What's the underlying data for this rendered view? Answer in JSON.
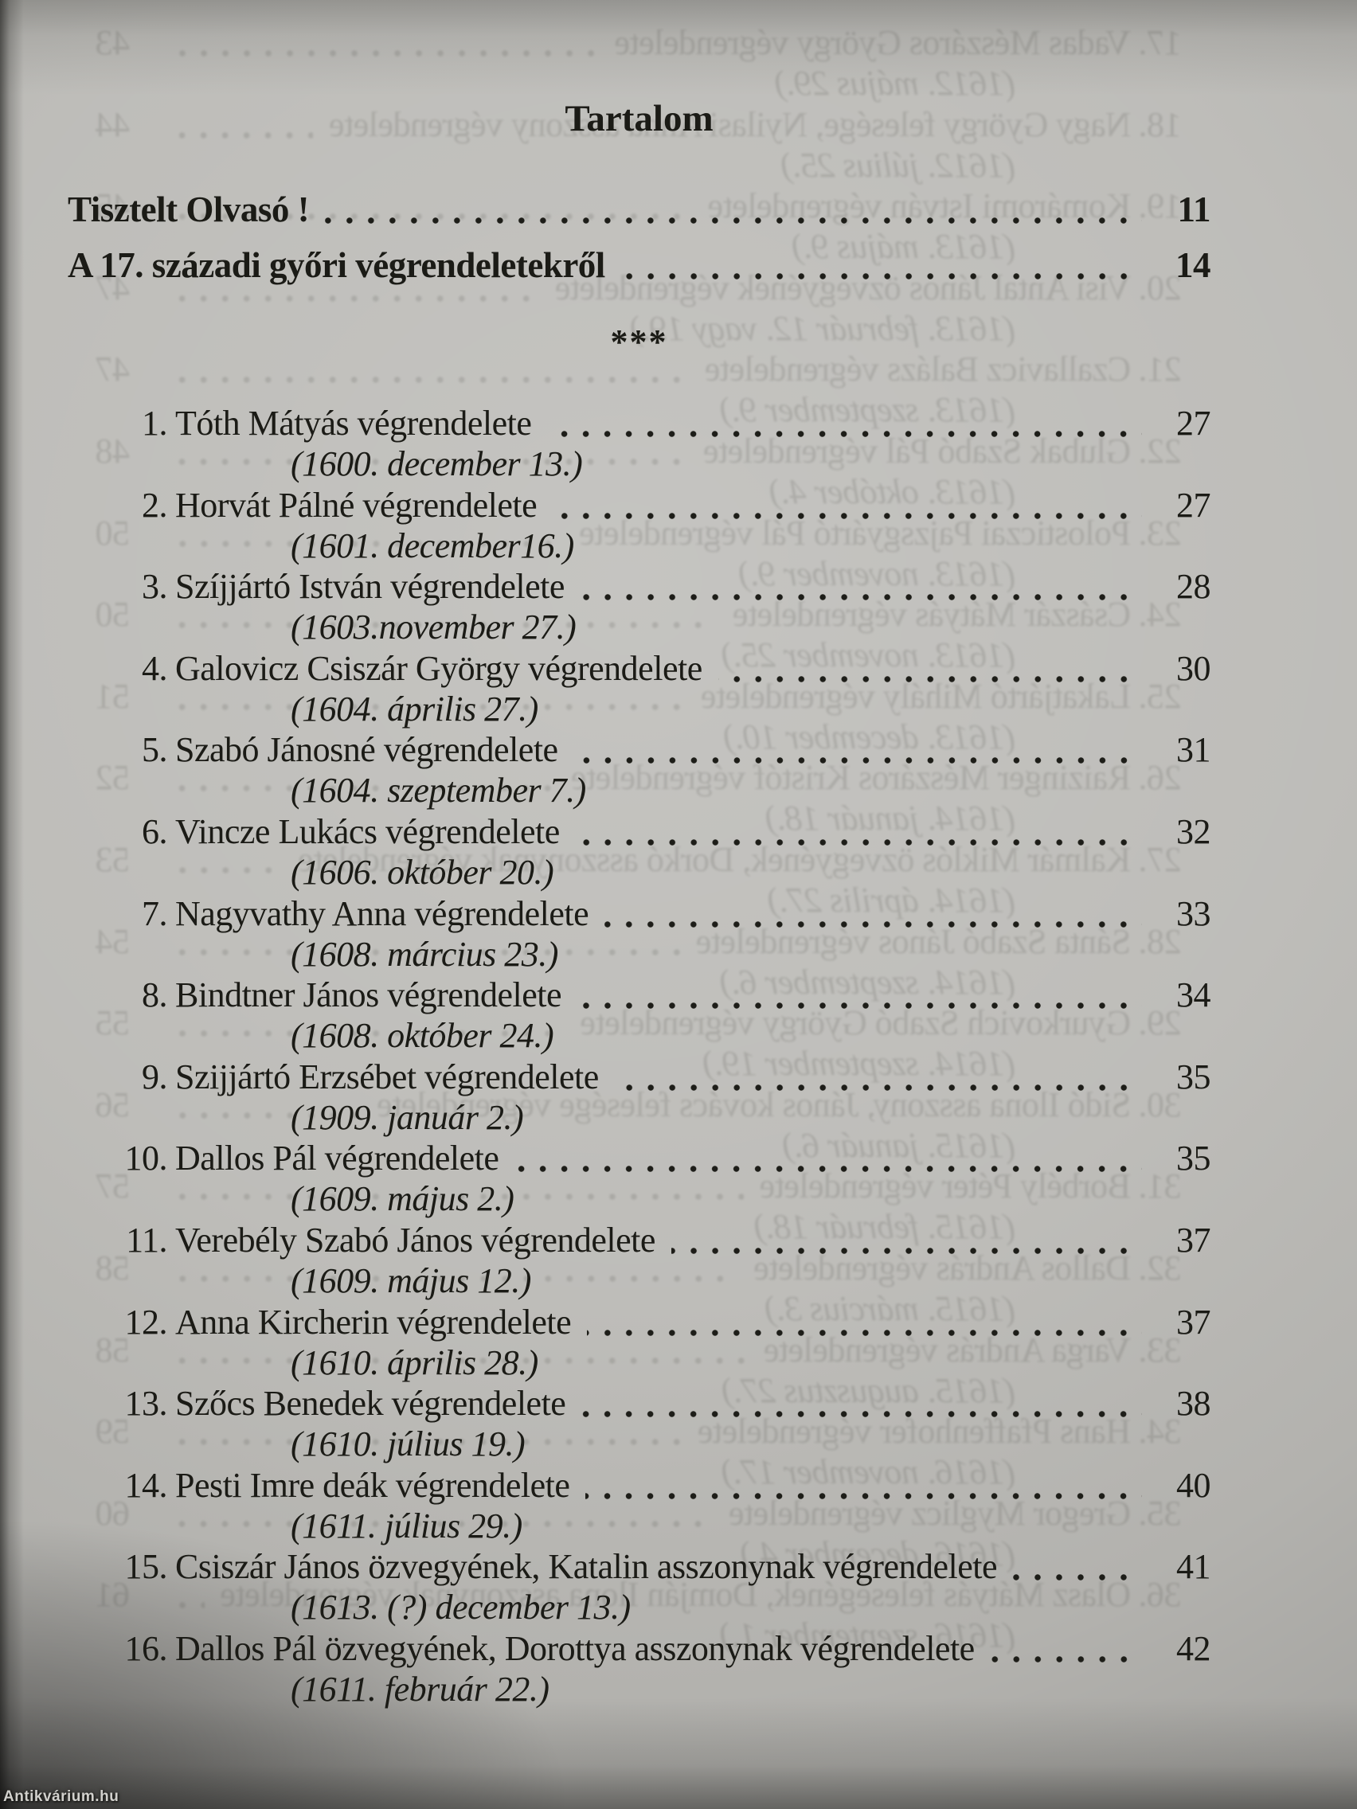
{
  "page": {
    "title": "Tartalom",
    "separator": "***",
    "watermark": "Antikvárium.hu"
  },
  "colors": {
    "paper": "#bab9b5",
    "ink": "#1b1b16"
  },
  "front_matter": [
    {
      "label": "Tisztelt Olvasó !",
      "page": "11"
    },
    {
      "label": "A 17. századi győri végrendeletekről",
      "page": "14"
    }
  ],
  "entries": [
    {
      "num": "1.",
      "name": "Tóth Mátyás végrendelete",
      "date": "(1600. december 13.)",
      "page": "27"
    },
    {
      "num": "2.",
      "name": "Horvát Pálné végrendelete",
      "date": "(1601. december16.)",
      "page": "27"
    },
    {
      "num": "3.",
      "name": "Szíjjártó István végrendelete",
      "date": "(1603.november 27.)",
      "page": "28"
    },
    {
      "num": "4.",
      "name": "Galovicz Csiszár György végrendelete",
      "date": "(1604. április 27.)",
      "page": "30"
    },
    {
      "num": "5.",
      "name": "Szabó Jánosné végrendelete",
      "date": "(1604. szeptember 7.)",
      "page": "31"
    },
    {
      "num": "6.",
      "name": "Vincze Lukács végrendelete",
      "date": "(1606. október 20.)",
      "page": "32"
    },
    {
      "num": "7.",
      "name": "Nagyvathy Anna végrendelete",
      "date": "(1608. március 23.)",
      "page": "33"
    },
    {
      "num": "8.",
      "name": "Bindtner János végrendelete",
      "date": "(1608. október 24.)",
      "page": "34"
    },
    {
      "num": "9.",
      "name": "Szijjártó Erzsébet végrendelete",
      "date": "(1909. január 2.)",
      "page": "35"
    },
    {
      "num": "10.",
      "name": "Dallos Pál végrendelete",
      "date": "(1609. május 2.)",
      "page": "35"
    },
    {
      "num": "11.",
      "name": "Verebély Szabó János végrendelete",
      "date": "(1609. május 12.)",
      "page": "37"
    },
    {
      "num": "12.",
      "name": "Anna Kircherin végrendelete",
      "date": "(1610. április 28.)",
      "page": "37"
    },
    {
      "num": "13.",
      "name": "Szőcs Benedek végrendelete",
      "date": "(1610. július 19.)",
      "page": "38"
    },
    {
      "num": "14.",
      "name": "Pesti Imre deák végrendelete",
      "date": "(1611. július 29.)",
      "page": "40"
    },
    {
      "num": "15.",
      "name": "Csiszár János özvegyének, Katalin asszonynak végrendelete",
      "date": "(1613. (?) december 13.)",
      "page": "41"
    },
    {
      "num": "16.",
      "name": "Dallos Pál özvegyének, Dorottya asszonynak végrendelete",
      "date": "(1611. február 22.)",
      "page": "42"
    }
  ],
  "ghost_entries": [
    {
      "num": "17.",
      "name": "Vadas Mészáros György végrendelete",
      "date": "(1612. május 29.)",
      "page": "43"
    },
    {
      "num": "18.",
      "name": "Nagy György felesége, Nyilasi Anna asszony végrendelete",
      "date": "(1612. július 25.)",
      "page": "44"
    },
    {
      "num": "19.",
      "name": "Komáromi István végrendelete",
      "date": "(1613. május 9.)",
      "page": "45"
    },
    {
      "num": "20.",
      "name": "Visi Antal János özvegyének végrendelete",
      "date": "(1613. február 12. vagy 19.)",
      "page": "47"
    },
    {
      "num": "21.",
      "name": "Czallavicz Balázs végrendelete",
      "date": "(1613. szeptember 9.)",
      "page": "47"
    },
    {
      "num": "22.",
      "name": "Glubak Szabó Pál végrendelete",
      "date": "(1613. október 4.)",
      "page": "48"
    },
    {
      "num": "23.",
      "name": "Polosticzai Pajzsgyártó Pál végrendelete",
      "date": "(1613. november 9.)",
      "page": "50"
    },
    {
      "num": "24.",
      "name": "Császár Mátyás végrendelete",
      "date": "(1613. november 25.)",
      "page": "50"
    },
    {
      "num": "25.",
      "name": "Lakatjártó Mihály végrendelete",
      "date": "(1613. december 10.)",
      "page": "51"
    },
    {
      "num": "26.",
      "name": "Raizinger Mészáros Kristóf végrendelete",
      "date": "(1614. január 18.)",
      "page": "52"
    },
    {
      "num": "27.",
      "name": "Kalmár Miklós özvegyének, Dorkó asszonynak végrendelete",
      "date": "(1614. április 27.)",
      "page": "53"
    },
    {
      "num": "28.",
      "name": "Sánta Szabó János végrendelete",
      "date": "(1614. szeptember 6.)",
      "page": "54"
    },
    {
      "num": "29.",
      "name": "Gyurkovich Szabó György végrendelete",
      "date": "(1614. szeptember 19.)",
      "page": "55"
    },
    {
      "num": "30.",
      "name": "Sidó Ilona asszony, János kovács felesége végrendelete",
      "date": "(1615. január 6.)",
      "page": "56"
    },
    {
      "num": "31.",
      "name": "Borbély Péter végrendelete",
      "date": "(1615. február 18.)",
      "page": "57"
    },
    {
      "num": "32.",
      "name": "Dallos András végrendelete",
      "date": "(1615. március 3.)",
      "page": "58"
    },
    {
      "num": "33.",
      "name": "Varga András végrendelete",
      "date": "(1615. augusztus 27.)",
      "page": "58"
    },
    {
      "num": "34.",
      "name": "Hans Pfaffenhofer végrendelete",
      "date": "(1616. november 17.)",
      "page": "59"
    },
    {
      "num": "35.",
      "name": "Gregor Myglicz végrendelete",
      "date": "(1616. december 4.)",
      "page": "60"
    },
    {
      "num": "36.",
      "name": "Olasz Mátyás feleségének, Domján Ilona asszonynak végrendelete",
      "date": "(1616. szeptember 1.)",
      "page": "61"
    }
  ]
}
